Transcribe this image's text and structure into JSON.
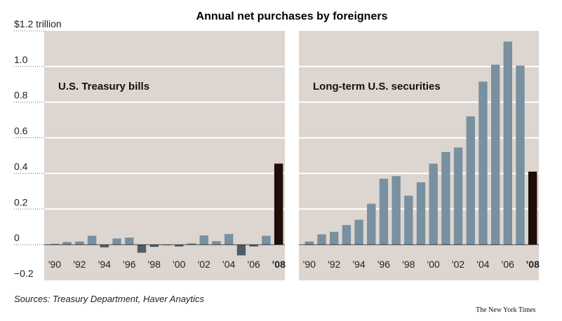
{
  "title": "Annual net purchases by foreigners",
  "source": "Sources: Treasury Department, Haver Anaytics",
  "credit": "The New York Times",
  "colors": {
    "panel_bg": "#ddd5cf",
    "bar": "#7890a0",
    "bar_negative": "#4f5c68",
    "bar_highlight": "#1f0d08",
    "gridline": "#ffffff"
  },
  "y_ticks": [
    {
      "value": 1.2,
      "label": "$1.2 trillion"
    },
    {
      "value": 1.0,
      "label": "1.0"
    },
    {
      "value": 0.8,
      "label": "0.8"
    },
    {
      "value": 0.6,
      "label": "0.6"
    },
    {
      "value": 0.4,
      "label": "0.4"
    },
    {
      "value": 0.2,
      "label": "0.2"
    },
    {
      "value": 0.0,
      "label": "0"
    },
    {
      "value": -0.2,
      "label": "−0.2"
    }
  ],
  "x_tick_labels": [
    {
      "year": 1990,
      "label": "'90",
      "bold": false
    },
    {
      "year": 1992,
      "label": "'92",
      "bold": false
    },
    {
      "year": 1994,
      "label": "'94",
      "bold": false
    },
    {
      "year": 1996,
      "label": "'96",
      "bold": false
    },
    {
      "year": 1998,
      "label": "'98",
      "bold": false
    },
    {
      "year": 2000,
      "label": "'00",
      "bold": false
    },
    {
      "year": 2002,
      "label": "'02",
      "bold": false
    },
    {
      "year": 2004,
      "label": "'04",
      "bold": false
    },
    {
      "year": 2006,
      "label": "'06",
      "bold": false
    },
    {
      "year": 2008,
      "label": "’08",
      "bold": true
    }
  ],
  "chart_data": [
    {
      "type": "bar",
      "title": "U.S. Treasury bills",
      "x": [
        1990,
        1991,
        1992,
        1993,
        1994,
        1995,
        1996,
        1997,
        1998,
        1999,
        2000,
        2001,
        2002,
        2003,
        2004,
        2005,
        2006,
        2007,
        2008
      ],
      "values": [
        0.005,
        0.015,
        0.018,
        0.05,
        -0.015,
        0.035,
        0.04,
        -0.045,
        -0.012,
        0.0,
        -0.01,
        0.008,
        0.052,
        0.02,
        0.06,
        -0.06,
        -0.01,
        0.05,
        0.455
      ],
      "ylim": [
        -0.2,
        1.2
      ],
      "highlight_last": true
    },
    {
      "type": "bar",
      "title": "Long-term U.S. securities",
      "x": [
        1990,
        1991,
        1992,
        1993,
        1994,
        1995,
        1996,
        1997,
        1998,
        1999,
        2000,
        2001,
        2002,
        2003,
        2004,
        2005,
        2006,
        2007,
        2008
      ],
      "values": [
        0.018,
        0.058,
        0.072,
        0.11,
        0.14,
        0.23,
        0.37,
        0.385,
        0.275,
        0.35,
        0.455,
        0.52,
        0.545,
        0.72,
        0.915,
        1.01,
        1.14,
        1.005,
        0.41
      ],
      "ylim": [
        -0.2,
        1.2
      ],
      "highlight_last": true
    }
  ]
}
